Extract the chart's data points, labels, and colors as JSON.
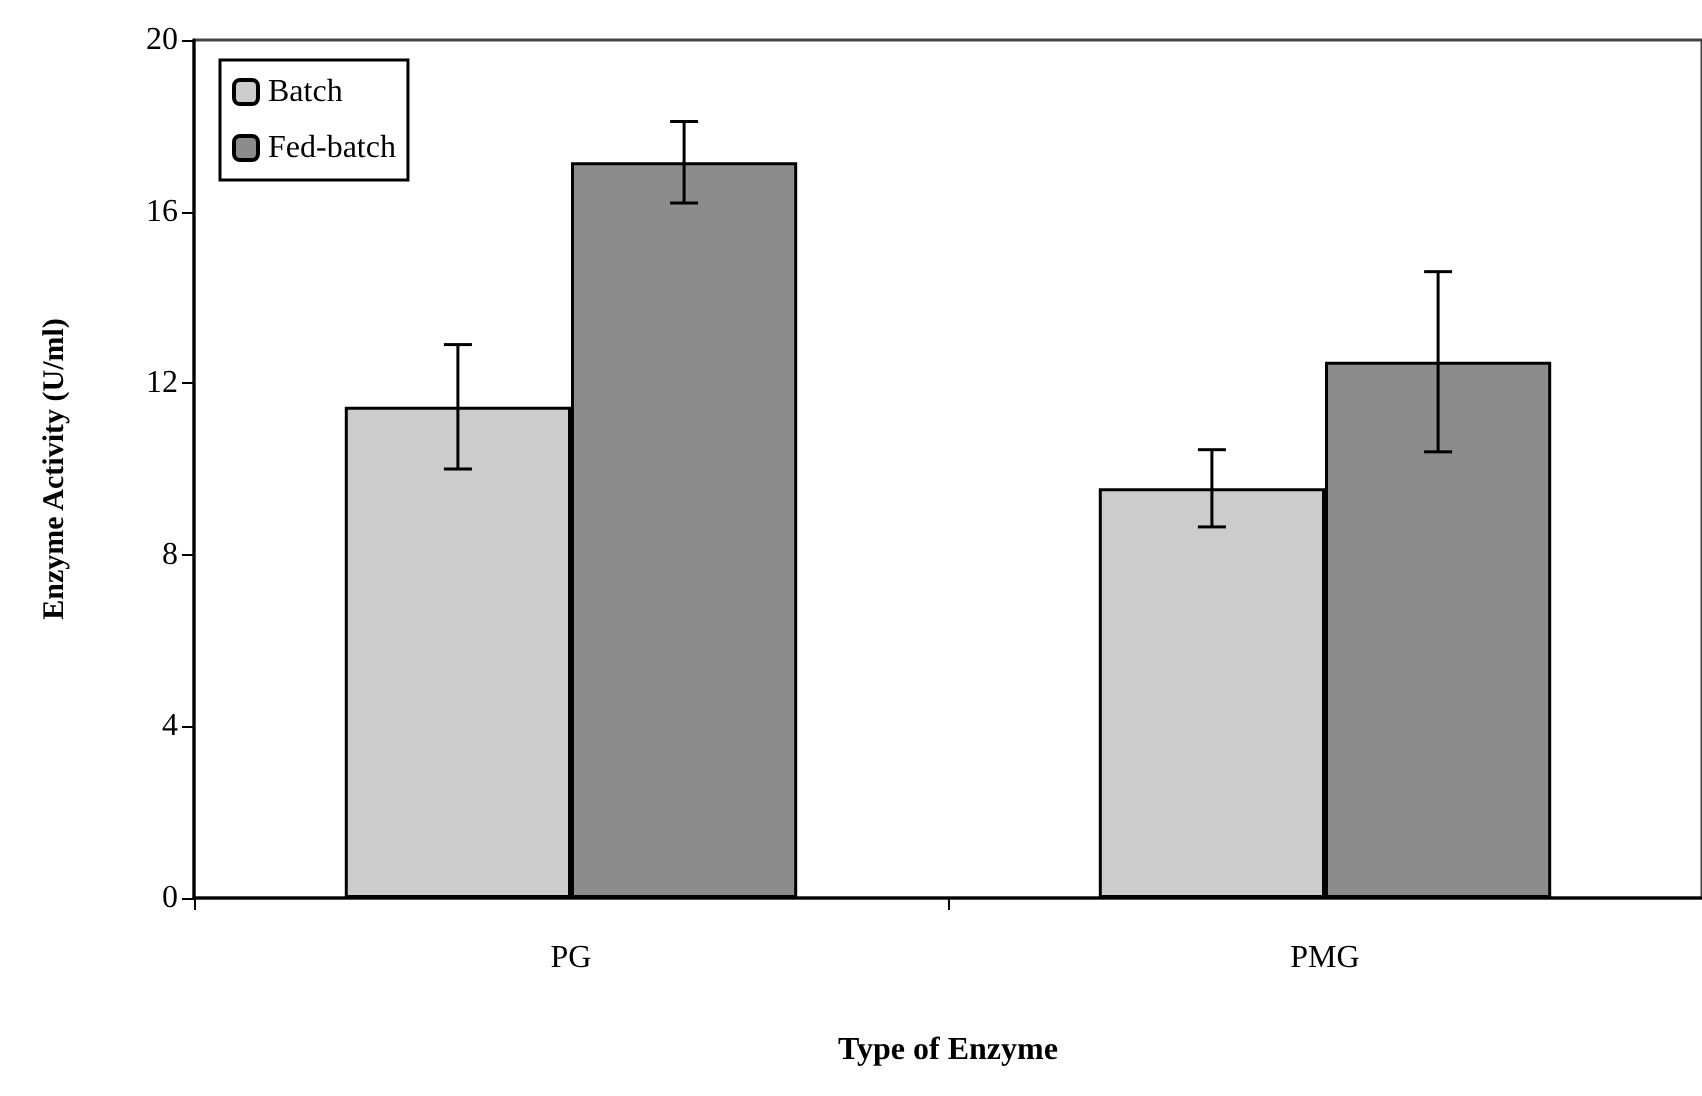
{
  "chart_data": {
    "type": "bar",
    "xlabel": "Type of Enzyme",
    "ylabel": "Enzyme Activity (U/ml)",
    "categories": [
      "PG",
      "PMG"
    ],
    "series": [
      {
        "name": "Batch",
        "color": "#cccccc",
        "values": [
          11.45,
          9.55
        ],
        "errors": [
          1.45,
          0.9
        ]
      },
      {
        "name": "Fed-batch",
        "color": "#8c8c8c",
        "values": [
          17.15,
          12.5
        ],
        "errors": [
          0.95,
          2.1
        ]
      }
    ],
    "ylim": [
      0,
      20
    ],
    "yticks": [
      0,
      4,
      8,
      12,
      16,
      20
    ],
    "grid": false,
    "legend": "top left"
  }
}
